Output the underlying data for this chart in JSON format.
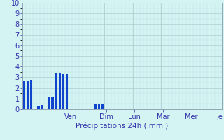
{
  "xlabel": "Précipitations 24h ( mm )",
  "background_color": "#d4f4f4",
  "bar_color": "#1144cc",
  "ylim": [
    0,
    10
  ],
  "yticks": [
    0,
    1,
    2,
    3,
    4,
    5,
    6,
    7,
    8,
    9,
    10
  ],
  "day_labels": [
    "Ven",
    "Dim",
    "Lun",
    "Mar",
    "Mer",
    "Je"
  ],
  "num_bars": 56,
  "bar_values": [
    2.6,
    2.6,
    2.7,
    0.0,
    0.3,
    0.4,
    0.0,
    1.1,
    1.2,
    3.4,
    3.4,
    3.3,
    3.3,
    0.0,
    0.0,
    0.0,
    0.0,
    0.0,
    0.0,
    0.0,
    0.5,
    0.5,
    0.5,
    0.0,
    0.0,
    0.0,
    0.0,
    0.0,
    0.0,
    0.0,
    0.0,
    0.0,
    0.0,
    0.0,
    0.0,
    0.0,
    0.0,
    0.0,
    0.0,
    0.0,
    0.0,
    0.0,
    0.0,
    0.0,
    0.0,
    0.0,
    0.0,
    0.0,
    0.0,
    0.0,
    0.0,
    0.0,
    0.0,
    0.0,
    0.0,
    0.0
  ],
  "day_tick_positions": [
    13,
    23,
    31,
    39,
    47,
    55
  ],
  "day_boundary_positions": [
    13,
    23,
    31,
    39,
    47
  ],
  "grid_major_color": "#aacece",
  "grid_minor_color": "#bbdddd",
  "tick_color": "#3333aa",
  "spine_color": "#8899aa",
  "xlabel_fontsize": 7.5,
  "ytick_fontsize": 7,
  "xtick_fontsize": 7
}
